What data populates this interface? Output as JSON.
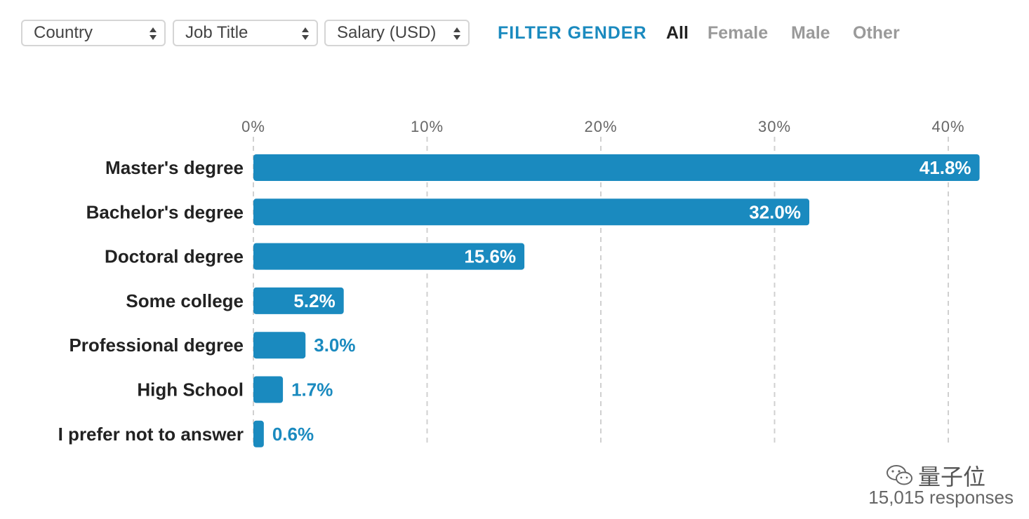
{
  "filters": {
    "country": "Country",
    "job_title": "Job Title",
    "salary": "Salary (USD)"
  },
  "gender_filter": {
    "label": "FILTER GENDER",
    "options": [
      "All",
      "Female",
      "Male",
      "Other"
    ],
    "selected": "All"
  },
  "colors": {
    "bar": "#1a8abf",
    "label_inside": "#ffffff",
    "label_outside": "#1a8abf",
    "grid": "#d0d0d0",
    "category_text": "#222222"
  },
  "chart_data": {
    "type": "bar",
    "orientation": "horizontal",
    "categories": [
      "Master's degree",
      "Bachelor's degree",
      "Doctoral degree",
      "Some college",
      "Professional degree",
      "High School",
      "I prefer not to answer"
    ],
    "values": [
      41.8,
      32.0,
      15.6,
      5.2,
      3.0,
      1.7,
      0.6
    ],
    "value_labels": [
      "41.8%",
      "32.0%",
      "15.6%",
      "5.2%",
      "3.0%",
      "1.7%",
      "0.6%"
    ],
    "xlim": [
      0,
      40
    ],
    "ticks": [
      0,
      10,
      20,
      30,
      40
    ],
    "tick_labels": [
      "0%",
      "10%",
      "20%",
      "30%",
      "40%"
    ],
    "grid": true,
    "title": "",
    "xlabel": "",
    "ylabel": ""
  },
  "footer": {
    "responses": "15,015 responses",
    "watermark": "量子位"
  }
}
